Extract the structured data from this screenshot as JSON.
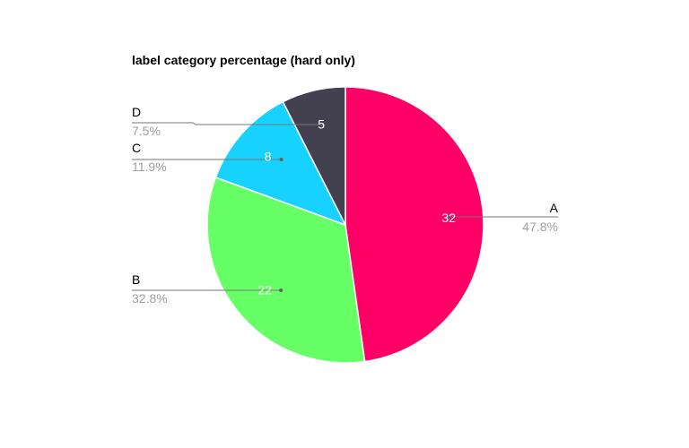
{
  "chart_data": {
    "type": "pie",
    "title": "label category percentage (hard only)",
    "slices": [
      {
        "label": "A",
        "value": 32,
        "value_label": "32",
        "percent_label": "47.8%",
        "color": "#ff0066"
      },
      {
        "label": "B",
        "value": 22,
        "value_label": "22",
        "percent_label": "32.8%",
        "color": "#66ff66"
      },
      {
        "label": "C",
        "value": 8,
        "value_label": "8",
        "percent_label": "11.9%",
        "color": "#17d1ff"
      },
      {
        "label": "D",
        "value": 5,
        "value_label": "5",
        "percent_label": "7.5%",
        "color": "#43404f"
      }
    ],
    "legend": "none"
  }
}
